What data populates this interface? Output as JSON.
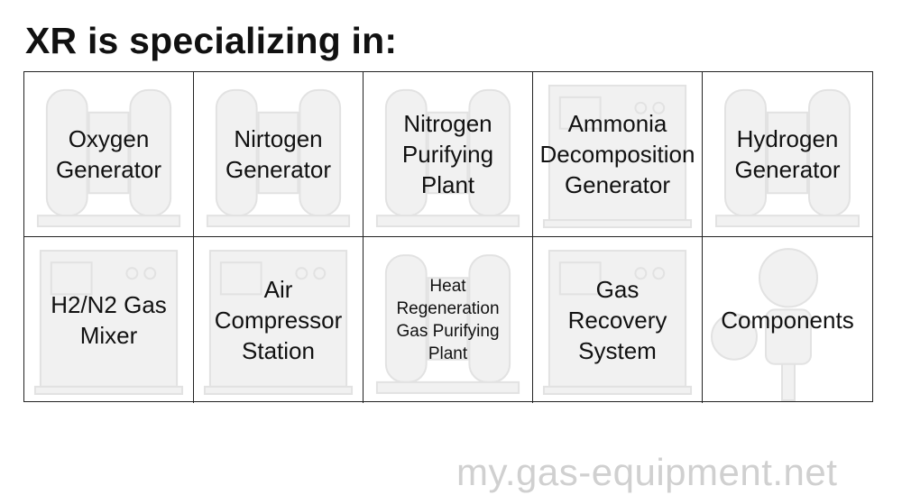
{
  "header": {
    "title": "XR is specializing in:"
  },
  "products": [
    {
      "label": "Oxygen\nGenerator",
      "icon": "tanks-icon"
    },
    {
      "label": "Nirtogen\nGenerator",
      "icon": "tanks-icon"
    },
    {
      "label": "Nitrogen\nPurifying\nPlant",
      "icon": "tanks-icon"
    },
    {
      "label": "Ammonia\nDecomposition\nGenerator",
      "icon": "cabinet-icon"
    },
    {
      "label": "Hydrogen\nGenerator",
      "icon": "tanks-icon"
    },
    {
      "label": "H2/N2 Gas\nMixer",
      "icon": "cabinet-icon"
    },
    {
      "label": "Air\nCompressor\nStation",
      "icon": "cabinet-icon"
    },
    {
      "label": "Heat\nRegeneration\nGas Purifying\nPlant",
      "icon": "tanks-icon",
      "small": true
    },
    {
      "label": "Gas\nRecovery\nSystem",
      "icon": "cabinet-icon"
    },
    {
      "label": "Components",
      "icon": "gauge-icon"
    }
  ],
  "watermark": "my.gas-equipment.net"
}
